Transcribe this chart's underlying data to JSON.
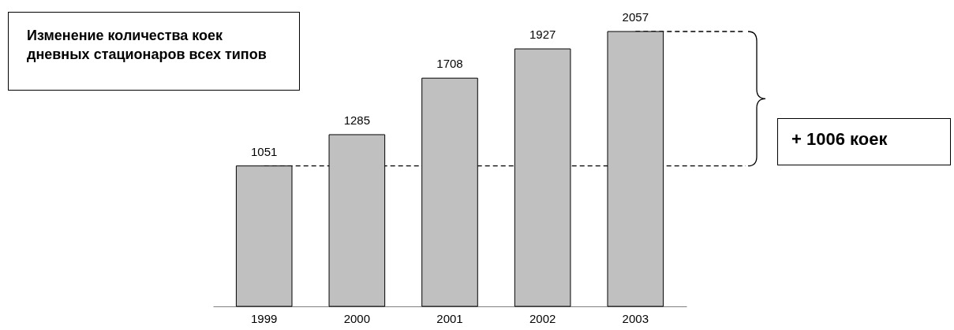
{
  "chart_data": {
    "type": "bar",
    "title": "Изменение количества коек дневных стационаров всех типов",
    "categories": [
      "1999",
      "2000",
      "2001",
      "2002",
      "2003"
    ],
    "values": [
      1051,
      1285,
      1708,
      1927,
      2057
    ],
    "color": "#c0c0c0",
    "data_labels": true,
    "ref_lines": [
      {
        "axis": "y",
        "value": 1051,
        "line_style": "dashed",
        "color": "#000000"
      },
      {
        "axis": "y",
        "value": 2057,
        "line_style": "dashed",
        "color": "#000000"
      }
    ],
    "annotations": [
      "+ 1006 коек"
    ]
  }
}
